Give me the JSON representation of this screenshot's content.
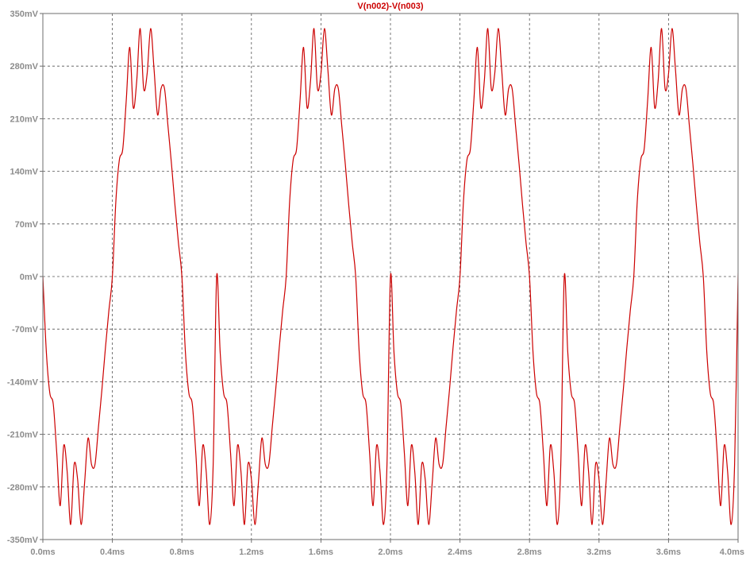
{
  "colors": {
    "trace": "#cc0000",
    "title": "#cc0000",
    "axis_text": "#8c8c8c",
    "grid": "#555555",
    "background": "#ffffff"
  },
  "chart_data": {
    "type": "line",
    "title": "V(n002)-V(n003)",
    "xlabel": "",
    "ylabel": "",
    "xlim": [
      0,
      4.0
    ],
    "ylim": [
      -350,
      350
    ],
    "x_unit": "ms",
    "y_unit": "mV",
    "grid": true,
    "x_ticks": [
      "0.0ms",
      "0.4ms",
      "0.8ms",
      "1.2ms",
      "1.6ms",
      "2.0ms",
      "2.4ms",
      "2.8ms",
      "3.2ms",
      "3.6ms",
      "4.0ms"
    ],
    "y_ticks": [
      "350mV",
      "280mV",
      "210mV",
      "140mV",
      "70mV",
      "0mV",
      "-70mV",
      "-140mV",
      "-210mV",
      "-280mV",
      "-350mV"
    ],
    "x_tick_values": [
      0,
      0.4,
      0.8,
      1.2,
      1.6,
      2.0,
      2.4,
      2.8,
      3.2,
      3.6,
      4.0
    ],
    "y_tick_values": [
      350,
      280,
      210,
      140,
      70,
      0,
      -70,
      -140,
      -210,
      -280,
      -350
    ],
    "series": [
      {
        "name": "V(n002)-V(n003)",
        "x": [
          0.0,
          0.02,
          0.04,
          0.06,
          0.08,
          0.1,
          0.12,
          0.14,
          0.16,
          0.18,
          0.2,
          0.22,
          0.24,
          0.26,
          0.28,
          0.3,
          0.32,
          0.34,
          0.36,
          0.38,
          0.4,
          0.42,
          0.44,
          0.46,
          0.48,
          0.5,
          0.52,
          0.54,
          0.56,
          0.58,
          0.6,
          0.62,
          0.64,
          0.66,
          0.68,
          0.7,
          0.72,
          0.74,
          0.76,
          0.78,
          0.8,
          0.82,
          0.84,
          0.86,
          0.88,
          0.9,
          0.92,
          0.94,
          0.96,
          0.98,
          1.0
        ],
        "y": [
          0,
          -100,
          -155,
          -170,
          -235,
          -305,
          -225,
          -260,
          -330,
          -250,
          -270,
          -330,
          -275,
          -215,
          -250,
          -250,
          -200,
          -150,
          -95,
          -45,
          0,
          100,
          155,
          170,
          235,
          305,
          225,
          260,
          330,
          250,
          270,
          330,
          275,
          215,
          250,
          250,
          200,
          150,
          95,
          45,
          0,
          -100,
          -155,
          -170,
          -235,
          -305,
          -225,
          -260,
          -330,
          -250,
          -270
        ],
        "note_period_ms": 1.0
      }
    ]
  }
}
